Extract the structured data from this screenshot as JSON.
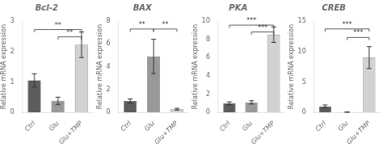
{
  "chart_data": [
    {
      "type": "bar",
      "title": "Bcl-2",
      "ylabel": "Relative mRNA expression",
      "categories": [
        "Ctrl",
        "Glu",
        "Glu+TMP"
      ],
      "values": [
        1.05,
        0.38,
        2.22
      ],
      "errors": [
        0.22,
        0.12,
        0.42
      ],
      "colors": [
        "#5c5c5c",
        "#999999",
        "#d2d2d2"
      ],
      "ylim": [
        0,
        3
      ],
      "yticks": [
        0,
        1,
        2,
        3
      ],
      "grid": false,
      "annotations": [
        {
          "from": "Ctrl",
          "to": "Glu+TMP",
          "y": 2.72,
          "label": "**"
        },
        {
          "from": "Glu",
          "to": "Glu+TMP",
          "y": 2.48,
          "label": "**"
        }
      ]
    },
    {
      "type": "bar",
      "title": "BAX",
      "ylabel": "Relative mRNA expression",
      "categories": [
        "Ctrl",
        "Glu",
        "Glu+TMP"
      ],
      "values": [
        1.0,
        4.9,
        0.28
      ],
      "errors": [
        0.18,
        1.5,
        0.08
      ],
      "colors": [
        "#5c5c5c",
        "#999999",
        "#d2d2d2"
      ],
      "ylim": [
        0,
        8
      ],
      "yticks": [
        0,
        2,
        4,
        6,
        8
      ],
      "grid": false,
      "annotations": [
        {
          "from": "Ctrl",
          "to": "Glu",
          "y": 7.3,
          "label": "**"
        },
        {
          "from": "Glu",
          "to": "Glu+TMP",
          "y": 7.3,
          "label": "**"
        }
      ]
    },
    {
      "type": "bar",
      "title": "PKA",
      "ylabel": "Relative mRNA expression",
      "categories": [
        "Ctrl",
        "Glu",
        "Glu+TMP"
      ],
      "values": [
        1.0,
        1.1,
        8.5
      ],
      "errors": [
        0.15,
        0.18,
        0.85
      ],
      "colors": [
        "#5c5c5c",
        "#999999",
        "#d2d2d2"
      ],
      "ylim": [
        0,
        10
      ],
      "yticks": [
        0,
        2,
        4,
        6,
        8,
        10
      ],
      "grid": false,
      "annotations": [
        {
          "from": "Ctrl",
          "to": "Glu+TMP",
          "y": 9.55,
          "label": "***"
        },
        {
          "from": "Glu",
          "to": "Glu+TMP",
          "y": 8.8,
          "label": "***"
        }
      ]
    },
    {
      "type": "bar",
      "title": "CREB",
      "ylabel": "Relative mRNA expression",
      "categories": [
        "Ctrl",
        "Glu",
        "Glu+TMP"
      ],
      "values": [
        1.0,
        0.05,
        9.0
      ],
      "errors": [
        0.22,
        0.02,
        1.8
      ],
      "colors": [
        "#5c5c5c",
        "#999999",
        "#d2d2d2"
      ],
      "ylim": [
        0,
        15
      ],
      "yticks": [
        0,
        5,
        10,
        15
      ],
      "grid": false,
      "annotations": [
        {
          "from": "Ctrl",
          "to": "Glu+TMP",
          "y": 13.7,
          "label": "***"
        },
        {
          "from": "Glu",
          "to": "Glu+TMP",
          "y": 12.3,
          "label": "***"
        }
      ]
    }
  ]
}
